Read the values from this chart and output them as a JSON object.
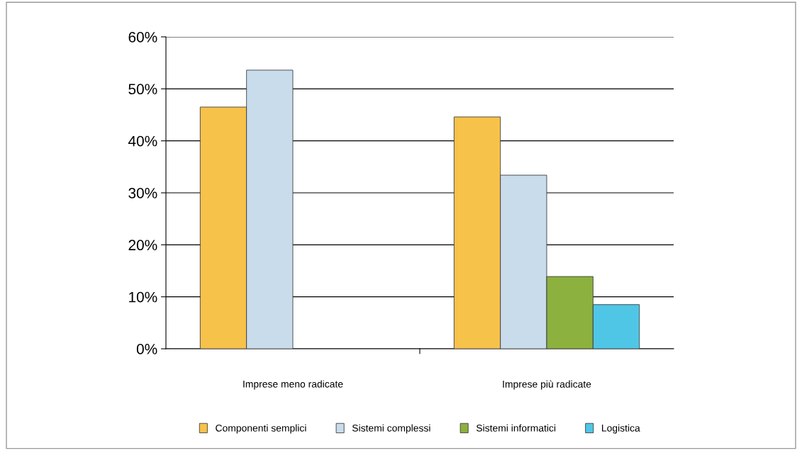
{
  "chart_data": {
    "type": "bar",
    "categories": [
      "Imprese meno radicate",
      "Imprese più radicate"
    ],
    "series": [
      {
        "name": "Componenti semplici",
        "color": "#f7c24a",
        "values": [
          46.5,
          44.6
        ]
      },
      {
        "name": "Sistemi complessi",
        "color": "#c9dcec",
        "values": [
          53.6,
          33.4
        ]
      },
      {
        "name": "Sistemi informatici",
        "color": "#8cb13e",
        "values": [
          null,
          13.9
        ]
      },
      {
        "name": "Logistica",
        "color": "#4fc6e6",
        "values": [
          null,
          8.5
        ]
      }
    ],
    "ylim": [
      0,
      60
    ],
    "yticks": [
      {
        "value": 0,
        "label": "0%"
      },
      {
        "value": 10,
        "label": "10%"
      },
      {
        "value": 20,
        "label": "20%"
      },
      {
        "value": 30,
        "label": "30%"
      },
      {
        "value": 40,
        "label": "40%"
      },
      {
        "value": 50,
        "label": "50%"
      },
      {
        "value": 60,
        "label": "60%"
      }
    ],
    "grid": "y",
    "legend": "bottom"
  }
}
